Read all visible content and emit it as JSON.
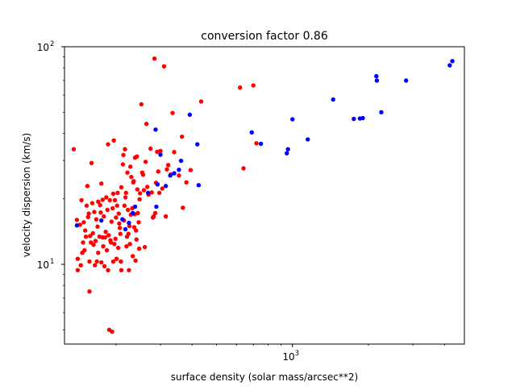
{
  "chart_data": {
    "type": "scatter",
    "title": "conversion factor 0.86",
    "xlabel": "surface density (solar mass/arcsec**2)",
    "ylabel": "velocity dispersion (km/s)",
    "xscale": "log",
    "yscale": "log",
    "xlim": [
      125,
      4800
    ],
    "ylim": [
      4.3,
      100
    ],
    "x_major_ticks": [
      {
        "value": 1000,
        "label": "10",
        "exp": "3"
      }
    ],
    "y_major_ticks": [
      {
        "value": 10,
        "label": "10",
        "exp": "1"
      },
      {
        "value": 100,
        "label": "10",
        "exp": "2"
      }
    ],
    "grid": false,
    "legend": "none",
    "series": [
      {
        "color": "#ff0000",
        "points": [
          [
            136,
            33.8
          ],
          [
            140,
            16
          ],
          [
            141,
            10.6
          ],
          [
            141,
            9.4
          ],
          [
            144,
            15.2
          ],
          [
            145,
            9.9
          ],
          [
            146,
            19.7
          ],
          [
            147,
            11.3
          ],
          [
            148,
            12.6
          ],
          [
            149,
            15.6
          ],
          [
            150,
            11.6
          ],
          [
            151,
            14.3
          ],
          [
            152,
            13.4
          ],
          [
            153,
            18.6
          ],
          [
            154,
            22.9
          ],
          [
            155,
            16.5
          ],
          [
            156,
            17.1
          ],
          [
            157,
            10.3
          ],
          [
            157,
            7.5
          ],
          [
            158,
            13.5
          ],
          [
            159,
            12.6
          ],
          [
            160,
            29.2
          ],
          [
            161,
            19.1
          ],
          [
            162,
            13.9
          ],
          [
            163,
            12.3
          ],
          [
            164,
            17.4
          ],
          [
            165,
            9.9
          ],
          [
            166,
            12.8
          ],
          [
            167,
            16.1
          ],
          [
            168,
            10.3
          ],
          [
            169,
            14.9
          ],
          [
            170,
            11.3
          ],
          [
            170,
            19.4
          ],
          [
            172,
            13.4
          ],
          [
            173,
            18.7
          ],
          [
            174,
            17.3
          ],
          [
            175,
            10.2
          ],
          [
            175,
            23.5
          ],
          [
            177,
            13.3
          ],
          [
            177,
            19.8
          ],
          [
            178,
            12.1
          ],
          [
            179,
            16.6
          ],
          [
            180,
            9.8
          ],
          [
            181,
            13.3
          ],
          [
            182,
            14.1
          ],
          [
            183,
            20.3
          ],
          [
            184,
            11.6
          ],
          [
            185,
            17.8
          ],
          [
            186,
            35.6
          ],
          [
            186,
            9.4
          ],
          [
            187,
            13.6
          ],
          [
            188,
            5
          ],
          [
            189,
            19.7
          ],
          [
            190,
            12.9
          ],
          [
            191,
            12.6
          ],
          [
            192,
            15.7
          ],
          [
            193,
            4.9
          ],
          [
            194,
            18.1
          ],
          [
            195,
            21.1
          ],
          [
            195,
            10.3
          ],
          [
            196,
            37.1
          ],
          [
            197,
            12.4
          ],
          [
            198,
            19.7
          ],
          [
            199,
            13.1
          ],
          [
            200,
            16.4
          ],
          [
            201,
            10.6
          ],
          [
            202,
            18.6
          ],
          [
            203,
            21.3
          ],
          [
            204,
            11.9
          ],
          [
            205,
            17.1
          ],
          [
            206,
            15.4
          ],
          [
            207,
            14.7
          ],
          [
            208,
            13.8
          ],
          [
            209,
            10.3
          ],
          [
            210,
            22.6
          ],
          [
            210,
            9.4
          ],
          [
            213,
            28.8
          ],
          [
            214,
            31.8
          ],
          [
            215,
            15.9
          ],
          [
            216,
            18.6
          ],
          [
            217,
            33.8
          ],
          [
            218,
            20.3
          ],
          [
            219,
            21.3
          ],
          [
            220,
            12.1
          ],
          [
            221,
            13.4
          ],
          [
            222,
            26.4
          ],
          [
            223,
            17.8
          ],
          [
            224,
            13.8
          ],
          [
            225,
            9.4
          ],
          [
            226,
            15
          ],
          [
            227,
            12.4
          ],
          [
            228,
            28.1
          ],
          [
            229,
            16.9
          ],
          [
            230,
            25.2
          ],
          [
            232,
            18.1
          ],
          [
            233,
            10.9
          ],
          [
            234,
            23.8
          ],
          [
            235,
            24.1
          ],
          [
            236,
            14.8
          ],
          [
            237,
            17
          ],
          [
            238,
            30.9
          ],
          [
            239,
            10.4
          ],
          [
            240,
            14.3
          ],
          [
            241,
            13
          ],
          [
            242,
            31.3
          ],
          [
            243,
            22.1
          ],
          [
            244,
            17.2
          ],
          [
            246,
            15.6
          ],
          [
            247,
            11.8
          ],
          [
            248,
            19.9
          ],
          [
            249,
            21.2
          ],
          [
            252,
            54.4
          ],
          [
            254,
            26.4
          ],
          [
            256,
            25.8
          ],
          [
            258,
            21.9
          ],
          [
            260,
            12
          ],
          [
            262,
            29.6
          ],
          [
            264,
            44.2
          ],
          [
            266,
            22.7
          ],
          [
            269,
            20.9
          ],
          [
            274,
            34
          ],
          [
            277,
            21.4
          ],
          [
            280,
            16.4
          ],
          [
            282,
            16.6
          ],
          [
            284,
            88.2
          ],
          [
            286,
            17.2
          ],
          [
            288,
            23.7
          ],
          [
            291,
            32.9
          ],
          [
            294,
            26.7
          ],
          [
            297,
            21.3
          ],
          [
            300,
            33.2
          ],
          [
            305,
            22.3
          ],
          [
            310,
            81.3
          ],
          [
            315,
            16.6
          ],
          [
            318,
            27.3
          ],
          [
            322,
            28.6
          ],
          [
            330,
            25.9
          ],
          [
            335,
            49.6
          ],
          [
            340,
            32.8
          ],
          [
            355,
            25.6
          ],
          [
            365,
            38.6
          ],
          [
            368,
            18.2
          ],
          [
            380,
            23.8
          ],
          [
            395,
            27.1
          ],
          [
            435,
            56
          ],
          [
            620,
            64.9
          ],
          [
            640,
            27.6
          ],
          [
            700,
            66.4
          ],
          [
            720,
            36
          ]
        ]
      },
      {
        "color": "#0000ff",
        "points": [
          [
            140,
            15.1
          ],
          [
            175,
            15.9
          ],
          [
            212,
            16.1
          ],
          [
            218,
            14.5
          ],
          [
            225,
            15.5
          ],
          [
            233,
            17.2
          ],
          [
            238,
            18.4
          ],
          [
            268,
            21.3
          ],
          [
            287,
            41.6
          ],
          [
            289,
            18.4
          ],
          [
            292,
            23.3
          ],
          [
            300,
            31.9
          ],
          [
            315,
            22.9
          ],
          [
            328,
            25.6
          ],
          [
            340,
            26.2
          ],
          [
            355,
            27.2
          ],
          [
            362,
            29.9
          ],
          [
            392,
            48.7
          ],
          [
            420,
            35.6
          ],
          [
            425,
            23.1
          ],
          [
            690,
            40.4
          ],
          [
            750,
            35.8
          ],
          [
            950,
            32.4
          ],
          [
            960,
            33.8
          ],
          [
            1000,
            46.4
          ],
          [
            1150,
            37.5
          ],
          [
            1450,
            57.2
          ],
          [
            1750,
            46.6
          ],
          [
            1850,
            46.8
          ],
          [
            1900,
            47
          ],
          [
            2150,
            73.2
          ],
          [
            2160,
            69.9
          ],
          [
            2250,
            50
          ],
          [
            2820,
            69.9
          ],
          [
            4200,
            82.1
          ],
          [
            4300,
            85.9
          ]
        ]
      }
    ]
  }
}
